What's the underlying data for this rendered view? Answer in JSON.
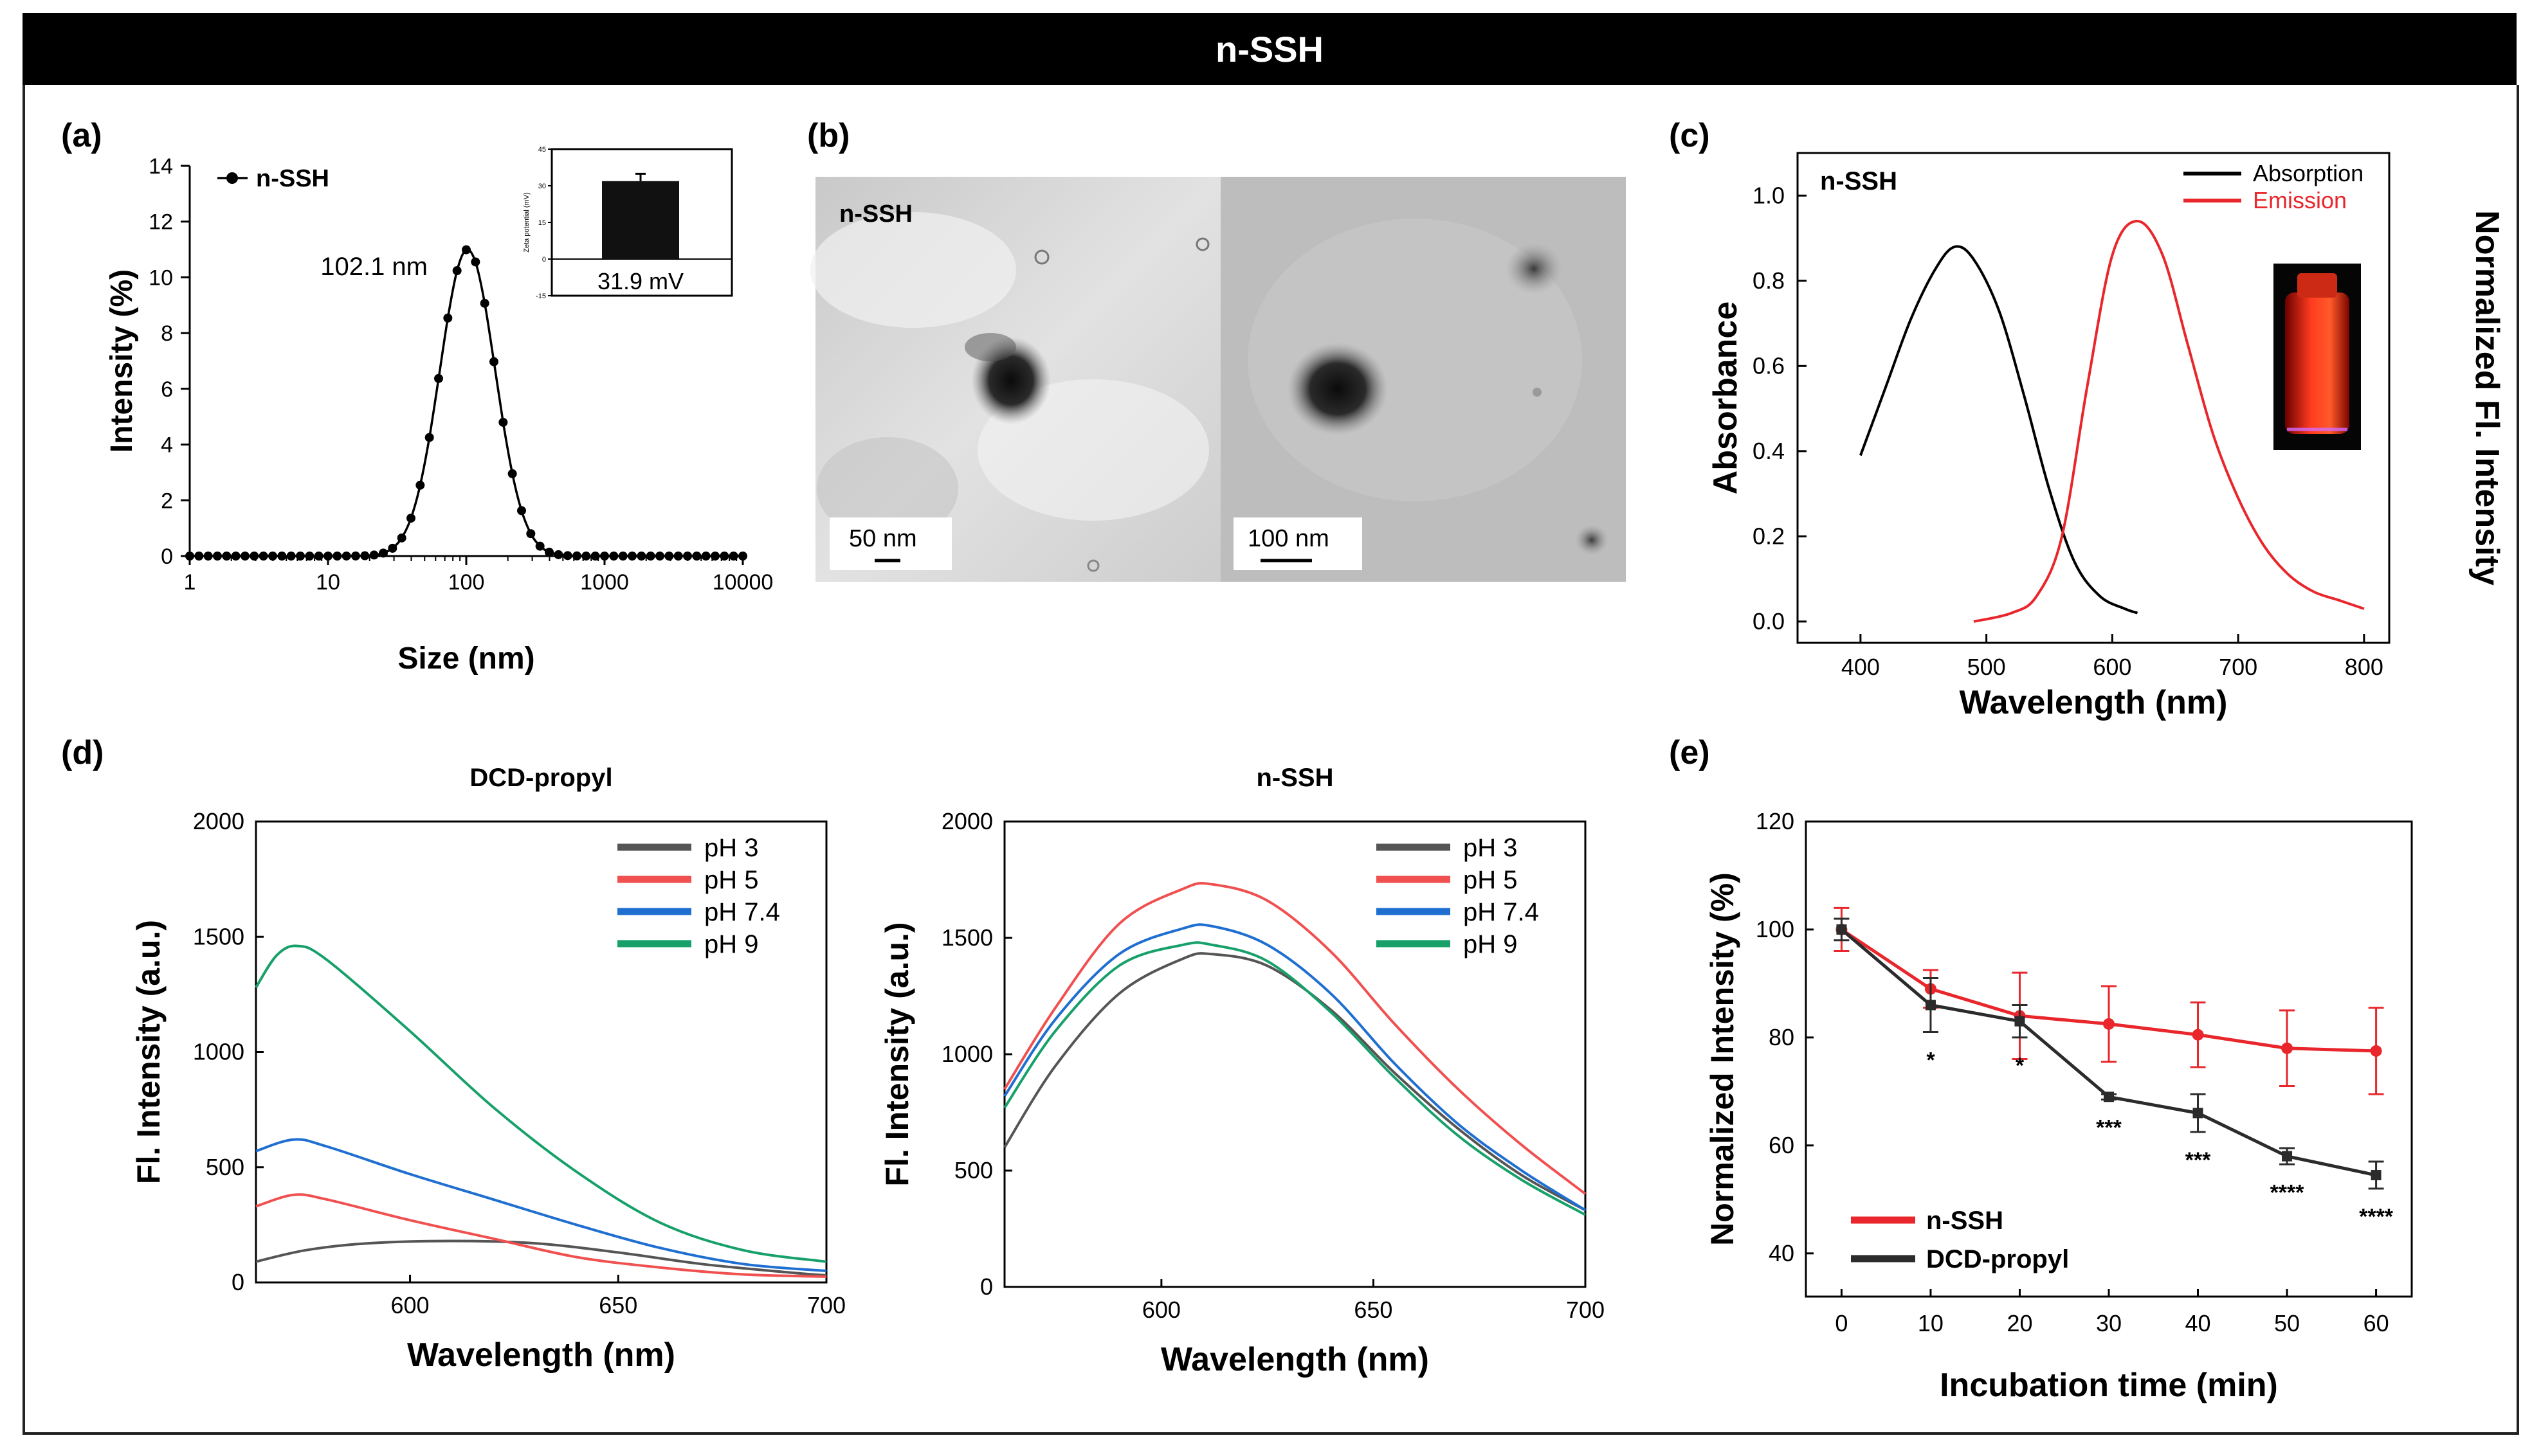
{
  "banner": {
    "title": "n-SSH"
  },
  "panels": {
    "a": {
      "label": "(a)"
    },
    "b": {
      "label": "(b)",
      "left_image_text": "n-SSH",
      "left_scale": "50 nm",
      "right_scale": "100 nm"
    },
    "c": {
      "label": "(c)"
    },
    "d": {
      "label": "(d)"
    },
    "e": {
      "label": "(e)"
    }
  },
  "colors": {
    "n_ssh_red": "#e8262b",
    "dcd_dark": "#2b2b2b",
    "ph3": "#555555",
    "ph5": "#f05050",
    "ph74": "#1f6fd1",
    "ph9": "#17a06a"
  },
  "chart_data": [
    {
      "id": "a",
      "type": "line",
      "xlabel": "Size (nm)",
      "ylabel": "Intensity (%)",
      "xscale": "log",
      "xlim": [
        1,
        10000
      ],
      "ylim": [
        0,
        14
      ],
      "xticks": [
        "1",
        "10",
        "100",
        "1000",
        "10000"
      ],
      "yticks": [
        "0",
        "2",
        "4",
        "6",
        "8",
        "10",
        "12",
        "14"
      ],
      "legend": [
        "n-SSH"
      ],
      "annotation": "102.1 nm",
      "series": [
        {
          "name": "n-SSH",
          "mu_nm": 102.1,
          "peak": 11.0,
          "sigma_log10": 0.2
        }
      ],
      "inset": {
        "type": "bar",
        "ylabel": "Zeta potential (mV)",
        "value": 31.9,
        "value_label": "31.9 mV",
        "error": 3,
        "ylim": [
          -15,
          45
        ],
        "yticks": [
          "-15",
          "0",
          "15",
          "30",
          "45"
        ]
      }
    },
    {
      "id": "c",
      "type": "line",
      "xlabel": "Wavelength (nm)",
      "ylabel": "Absorbance",
      "ylabel_right": "Normalized Fl. Intensity",
      "xlim": [
        350,
        820
      ],
      "ylim": [
        -0.05,
        1.1
      ],
      "xticks": [
        "400",
        "500",
        "600",
        "700",
        "800"
      ],
      "yticks": [
        "0.0",
        "0.2",
        "0.4",
        "0.6",
        "0.8",
        "1.0"
      ],
      "sample_label": "n-SSH",
      "legend": [
        "Absorption",
        "Emission"
      ],
      "series": [
        {
          "name": "Absorption",
          "x": [
            400,
            420,
            440,
            460,
            475,
            490,
            510,
            530,
            550,
            570,
            590,
            610,
            620
          ],
          "y": [
            0.39,
            0.55,
            0.71,
            0.83,
            0.88,
            0.85,
            0.73,
            0.53,
            0.31,
            0.14,
            0.06,
            0.03,
            0.02
          ]
        },
        {
          "name": "Emission",
          "x": [
            490,
            520,
            540,
            560,
            580,
            600,
            620,
            640,
            660,
            680,
            700,
            720,
            740,
            760,
            780,
            800
          ],
          "y": [
            0.0,
            0.02,
            0.06,
            0.2,
            0.55,
            0.86,
            0.94,
            0.86,
            0.65,
            0.44,
            0.29,
            0.18,
            0.11,
            0.07,
            0.05,
            0.03
          ]
        }
      ]
    },
    {
      "id": "d1",
      "type": "line",
      "title": "DCD-propyl",
      "xlabel": "Wavelength (nm)",
      "ylabel": "Fl. Intensity (a.u.)",
      "xlim": [
        563,
        700
      ],
      "ylim": [
        0,
        2000
      ],
      "xticks": [
        "600",
        "650",
        "700"
      ],
      "yticks": [
        "0",
        "500",
        "1000",
        "1500",
        "2000"
      ],
      "legend": [
        "pH 3",
        "pH 5",
        "pH 7.4",
        "pH 9"
      ],
      "series": [
        {
          "name": "pH 3",
          "x": [
            563,
            575,
            590,
            610,
            630,
            650,
            670,
            690,
            700
          ],
          "y": [
            90,
            140,
            170,
            180,
            170,
            130,
            80,
            45,
            30
          ]
        },
        {
          "name": "pH 5",
          "x": [
            563,
            572,
            580,
            600,
            620,
            640,
            660,
            680,
            700
          ],
          "y": [
            330,
            380,
            360,
            270,
            190,
            110,
            65,
            35,
            25
          ]
        },
        {
          "name": "pH 7.4",
          "x": [
            563,
            572,
            580,
            600,
            620,
            640,
            660,
            680,
            700
          ],
          "y": [
            570,
            620,
            590,
            470,
            360,
            250,
            150,
            80,
            50
          ]
        },
        {
          "name": "pH 9",
          "x": [
            563,
            568,
            573,
            580,
            600,
            620,
            640,
            660,
            680,
            700
          ],
          "y": [
            1280,
            1420,
            1460,
            1400,
            1090,
            760,
            480,
            260,
            140,
            90
          ]
        }
      ]
    },
    {
      "id": "d2",
      "type": "line",
      "title": "n-SSH",
      "xlabel": "Wavelength (nm)",
      "ylabel": "Fl. Intensity (a.u.)",
      "xlim": [
        563,
        700
      ],
      "ylim": [
        0,
        2000
      ],
      "xticks": [
        "600",
        "650",
        "700"
      ],
      "yticks": [
        "0",
        "500",
        "1000",
        "1500",
        "2000"
      ],
      "legend": [
        "pH 3",
        "pH 5",
        "pH 7.4",
        "pH 9"
      ],
      "series": [
        {
          "name": "pH 3",
          "x": [
            563,
            575,
            590,
            605,
            612,
            625,
            640,
            655,
            670,
            685,
            700
          ],
          "y": [
            600,
            950,
            1260,
            1410,
            1430,
            1380,
            1190,
            920,
            680,
            480,
            330
          ]
        },
        {
          "name": "pH 5",
          "x": [
            563,
            575,
            590,
            605,
            612,
            625,
            640,
            655,
            670,
            685,
            700
          ],
          "y": [
            850,
            1200,
            1560,
            1710,
            1730,
            1660,
            1440,
            1130,
            850,
            610,
            400
          ]
        },
        {
          "name": "pH 7.4",
          "x": [
            563,
            575,
            590,
            605,
            612,
            625,
            640,
            655,
            670,
            685,
            700
          ],
          "y": [
            820,
            1150,
            1430,
            1540,
            1550,
            1470,
            1260,
            960,
            700,
            500,
            330
          ]
        },
        {
          "name": "pH 9",
          "x": [
            563,
            575,
            590,
            605,
            612,
            625,
            640,
            655,
            670,
            685,
            700
          ],
          "y": [
            770,
            1100,
            1380,
            1470,
            1470,
            1400,
            1180,
            900,
            650,
            460,
            310
          ]
        }
      ]
    },
    {
      "id": "e",
      "type": "line",
      "xlabel": "Incubation time (min)",
      "ylabel": "Normalized Intensity (%)",
      "xlim": [
        -4,
        64
      ],
      "ylim": [
        32,
        120
      ],
      "xticks": [
        "0",
        "10",
        "20",
        "30",
        "40",
        "50",
        "60"
      ],
      "yticks": [
        "40",
        "60",
        "80",
        "100",
        "120"
      ],
      "legend": [
        "n-SSH",
        "DCD-propyl"
      ],
      "x": [
        0,
        10,
        20,
        30,
        40,
        50,
        60
      ],
      "series": [
        {
          "name": "n-SSH",
          "values": [
            100,
            89,
            84,
            82.5,
            80.5,
            78,
            77.5
          ],
          "errors": [
            4,
            3.5,
            8,
            7,
            6,
            7,
            8
          ]
        },
        {
          "name": "DCD-propyl",
          "values": [
            100,
            86,
            83,
            69,
            66,
            58,
            54.5
          ],
          "errors": [
            2,
            5,
            3,
            0.5,
            3.5,
            1.5,
            2.5
          ]
        }
      ],
      "significance": [
        "",
        "*",
        "*",
        "***",
        "***",
        "****",
        "****"
      ]
    }
  ]
}
